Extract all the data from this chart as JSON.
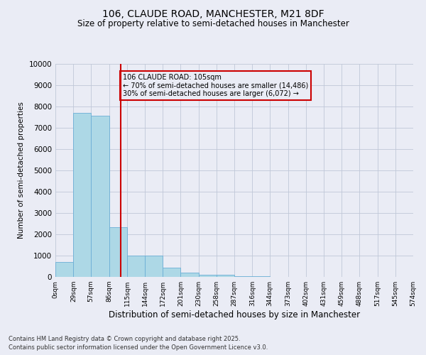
{
  "title1": "106, CLAUDE ROAD, MANCHESTER, M21 8DF",
  "title2": "Size of property relative to semi-detached houses in Manchester",
  "xlabel": "Distribution of semi-detached houses by size in Manchester",
  "ylabel": "Number of semi-detached properties",
  "property_size": 105,
  "property_label": "106 CLAUDE ROAD: 105sqm",
  "pct_smaller": 70,
  "pct_larger": 30,
  "count_smaller": 14486,
  "count_larger": 6072,
  "footnote1": "Contains HM Land Registry data © Crown copyright and database right 2025.",
  "footnote2": "Contains public sector information licensed under the Open Government Licence v3.0.",
  "bin_labels": [
    "0sqm",
    "29sqm",
    "57sqm",
    "86sqm",
    "115sqm",
    "144sqm",
    "172sqm",
    "201sqm",
    "230sqm",
    "258sqm",
    "287sqm",
    "316sqm",
    "344sqm",
    "373sqm",
    "402sqm",
    "431sqm",
    "459sqm",
    "488sqm",
    "517sqm",
    "545sqm",
    "574sqm"
  ],
  "bin_edges": [
    0,
    29,
    57,
    86,
    115,
    144,
    172,
    201,
    230,
    258,
    287,
    316,
    344,
    373,
    402,
    431,
    459,
    488,
    517,
    545,
    574
  ],
  "bar_heights": [
    700,
    7700,
    7550,
    2350,
    1000,
    1000,
    450,
    200,
    100,
    100,
    50,
    20,
    10,
    5,
    2,
    2,
    2,
    2,
    2,
    2
  ],
  "bar_color": "#add8e6",
  "bar_edge_color": "#6baed6",
  "vline_x": 105,
  "vline_color": "#cc0000",
  "annotation_box_color": "#cc0000",
  "grid_color": "#c0c8d8",
  "background_color": "#eaecf5",
  "ylim": [
    0,
    10000
  ],
  "yticks": [
    0,
    1000,
    2000,
    3000,
    4000,
    5000,
    6000,
    7000,
    8000,
    9000,
    10000
  ]
}
